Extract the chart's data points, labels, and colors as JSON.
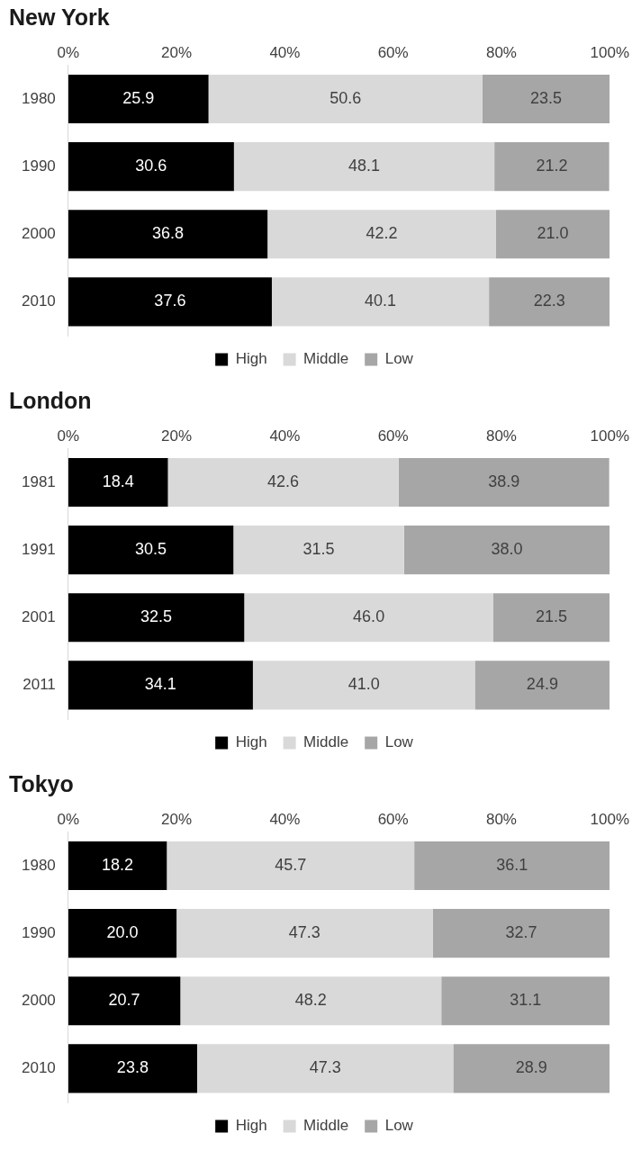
{
  "chart_data": [
    {
      "type": "bar",
      "title": "New York",
      "orientation": "horizontal",
      "stacked": true,
      "categories": [
        "1980",
        "1990",
        "2000",
        "2010"
      ],
      "series": [
        {
          "name": "High",
          "color": "#000000",
          "values": [
            25.9,
            30.6,
            36.8,
            37.6
          ],
          "value_labels": [
            "25.9",
            "30.6",
            "36.8",
            "37.6"
          ]
        },
        {
          "name": "Middle",
          "color": "#d9d9d9",
          "values": [
            50.6,
            48.1,
            42.2,
            40.1
          ],
          "value_labels": [
            "50.6",
            "48.1",
            "42.2",
            "40.1"
          ]
        },
        {
          "name": "Low",
          "color": "#a6a6a6",
          "values": [
            23.5,
            21.2,
            21.0,
            22.3
          ],
          "value_labels": [
            "23.5",
            "21.2",
            "21.0",
            "22.3"
          ]
        }
      ],
      "xlim": [
        0,
        100
      ],
      "xticks": [
        {
          "value": 0,
          "label": "0%"
        },
        {
          "value": 20,
          "label": "20%"
        },
        {
          "value": 40,
          "label": "40%"
        },
        {
          "value": 60,
          "label": "60%"
        },
        {
          "value": 80,
          "label": "80%"
        },
        {
          "value": 100,
          "label": "100%"
        }
      ],
      "grid": false,
      "legend": "bottom"
    },
    {
      "type": "bar",
      "title": "London",
      "orientation": "horizontal",
      "stacked": true,
      "categories": [
        "1981",
        "1991",
        "2001",
        "2011"
      ],
      "series": [
        {
          "name": "High",
          "color": "#000000",
          "values": [
            18.4,
            30.5,
            32.5,
            34.1
          ],
          "value_labels": [
            "18.4",
            "30.5",
            "32.5",
            "34.1"
          ]
        },
        {
          "name": "Middle",
          "color": "#d9d9d9",
          "values": [
            42.6,
            31.5,
            46.0,
            41.0
          ],
          "value_labels": [
            "42.6",
            "31.5",
            "46.0",
            "41.0"
          ]
        },
        {
          "name": "Low",
          "color": "#a6a6a6",
          "values": [
            38.9,
            38.0,
            21.5,
            24.9
          ],
          "value_labels": [
            "38.9",
            "38.0",
            "21.5",
            "24.9"
          ]
        }
      ],
      "xlim": [
        0,
        100
      ],
      "xticks": [
        {
          "value": 0,
          "label": "0%"
        },
        {
          "value": 20,
          "label": "20%"
        },
        {
          "value": 40,
          "label": "40%"
        },
        {
          "value": 60,
          "label": "60%"
        },
        {
          "value": 80,
          "label": "80%"
        },
        {
          "value": 100,
          "label": "100%"
        }
      ],
      "grid": false,
      "legend": "bottom"
    },
    {
      "type": "bar",
      "title": "Tokyo",
      "orientation": "horizontal",
      "stacked": true,
      "categories": [
        "1980",
        "1990",
        "2000",
        "2010"
      ],
      "series": [
        {
          "name": "High",
          "color": "#000000",
          "values": [
            18.2,
            20.0,
            20.7,
            23.8
          ],
          "value_labels": [
            "18.2",
            "20.0",
            "20.7",
            "23.8"
          ]
        },
        {
          "name": "Middle",
          "color": "#d9d9d9",
          "values": [
            45.7,
            47.3,
            48.2,
            47.3
          ],
          "value_labels": [
            "45.7",
            "47.3",
            "48.2",
            "47.3"
          ]
        },
        {
          "name": "Low",
          "color": "#a6a6a6",
          "values": [
            36.1,
            32.7,
            31.1,
            28.9
          ],
          "value_labels": [
            "36.1",
            "32.7",
            "31.1",
            "28.9"
          ]
        }
      ],
      "xlim": [
        0,
        100
      ],
      "xticks": [
        {
          "value": 0,
          "label": "0%"
        },
        {
          "value": 20,
          "label": "20%"
        },
        {
          "value": 40,
          "label": "40%"
        },
        {
          "value": 60,
          "label": "60%"
        },
        {
          "value": 80,
          "label": "80%"
        },
        {
          "value": 100,
          "label": "100%"
        }
      ],
      "grid": false,
      "legend": "bottom"
    }
  ]
}
